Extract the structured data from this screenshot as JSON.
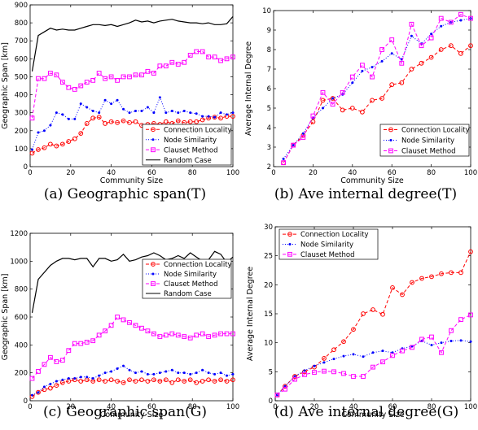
{
  "chart_data": [
    {
      "type": "line",
      "caption": "(a) Geographic span(T)",
      "xlabel": "Community Size",
      "ylabel": "Geographic Span [km]",
      "xlim": [
        0,
        100
      ],
      "ylim": [
        0,
        900
      ],
      "xticks": [
        0,
        20,
        40,
        60,
        80,
        100
      ],
      "yticks": [
        0,
        100,
        200,
        300,
        400,
        500,
        600,
        700,
        800,
        900
      ],
      "legend_position": "bottom-right",
      "series": [
        {
          "name": "Connection Locality",
          "color": "#ff0000",
          "style": "dashed",
          "marker": "circle",
          "x": [
            1,
            4,
            7,
            10,
            13,
            16,
            19,
            22,
            25,
            28,
            31,
            34,
            37,
            40,
            43,
            46,
            49,
            52,
            55,
            58,
            61,
            64,
            67,
            70,
            73,
            76,
            79,
            82,
            85,
            88,
            91,
            94,
            97,
            100
          ],
          "y": [
            75,
            95,
            105,
            125,
            115,
            125,
            140,
            155,
            185,
            240,
            270,
            275,
            240,
            250,
            245,
            255,
            245,
            250,
            230,
            235,
            240,
            235,
            250,
            240,
            255,
            245,
            250,
            250,
            260,
            270,
            275,
            270,
            280,
            280
          ]
        },
        {
          "name": "Node Similarity",
          "color": "#0000ff",
          "style": "dotted",
          "marker": "dot",
          "x": [
            1,
            4,
            7,
            10,
            13,
            16,
            19,
            22,
            25,
            28,
            31,
            34,
            37,
            40,
            43,
            46,
            49,
            52,
            55,
            58,
            61,
            64,
            67,
            70,
            73,
            76,
            79,
            82,
            85,
            88,
            91,
            94,
            97,
            100
          ],
          "y": [
            95,
            190,
            200,
            230,
            300,
            290,
            265,
            265,
            350,
            330,
            310,
            300,
            370,
            350,
            370,
            320,
            300,
            310,
            310,
            330,
            300,
            385,
            300,
            310,
            300,
            310,
            300,
            295,
            280,
            280,
            275,
            300,
            290,
            300
          ]
        },
        {
          "name": "Clauset Method",
          "color": "#ff00ff",
          "style": "dashed",
          "marker": "square",
          "x": [
            1,
            4,
            7,
            10,
            13,
            16,
            19,
            22,
            25,
            28,
            31,
            34,
            37,
            40,
            43,
            46,
            49,
            52,
            55,
            58,
            61,
            64,
            67,
            70,
            73,
            76,
            79,
            82,
            85,
            88,
            91,
            94,
            97,
            100
          ],
          "y": [
            270,
            490,
            490,
            520,
            510,
            470,
            440,
            430,
            450,
            470,
            480,
            520,
            490,
            500,
            480,
            500,
            500,
            510,
            510,
            530,
            520,
            560,
            560,
            580,
            570,
            580,
            620,
            640,
            640,
            610,
            610,
            590,
            600,
            610
          ]
        },
        {
          "name": "Random Case",
          "color": "#000000",
          "style": "solid",
          "marker": "none",
          "x": [
            1,
            4,
            7,
            10,
            13,
            16,
            19,
            22,
            25,
            28,
            31,
            34,
            37,
            40,
            43,
            46,
            49,
            52,
            55,
            58,
            61,
            64,
            67,
            70,
            73,
            76,
            79,
            82,
            85,
            88,
            91,
            94,
            97,
            100
          ],
          "y": [
            530,
            730,
            750,
            770,
            760,
            765,
            760,
            760,
            770,
            780,
            790,
            790,
            785,
            790,
            780,
            790,
            800,
            815,
            805,
            810,
            800,
            810,
            815,
            820,
            810,
            805,
            800,
            800,
            795,
            800,
            790,
            790,
            795,
            835
          ]
        }
      ]
    },
    {
      "type": "line",
      "caption": "(b) Ave internal degree(T)",
      "xlabel": "Community Size",
      "ylabel": "Average Internal Degree",
      "xlim": [
        0,
        100
      ],
      "ylim": [
        2,
        10
      ],
      "xticks": [
        0,
        20,
        40,
        60,
        80,
        100
      ],
      "yticks": [
        2,
        3,
        4,
        5,
        6,
        7,
        8,
        9,
        10
      ],
      "legend_position": "bottom-right",
      "series": [
        {
          "name": "Connection Locality",
          "color": "#ff0000",
          "style": "dashed",
          "marker": "circle",
          "x": [
            5,
            10,
            15,
            20,
            25,
            30,
            35,
            40,
            45,
            50,
            55,
            60,
            65,
            70,
            75,
            80,
            85,
            90,
            95,
            100
          ],
          "y": [
            2.2,
            3.1,
            3.6,
            4.3,
            5.4,
            5.5,
            4.9,
            5.0,
            4.8,
            5.4,
            5.5,
            6.2,
            6.3,
            7.0,
            7.3,
            7.6,
            8.0,
            8.2,
            7.8,
            8.2
          ]
        },
        {
          "name": "Node Similarity",
          "color": "#0000ff",
          "style": "dotted",
          "marker": "dot",
          "x": [
            5,
            10,
            15,
            20,
            25,
            30,
            35,
            40,
            45,
            50,
            55,
            60,
            65,
            70,
            75,
            80,
            85,
            90,
            95,
            100
          ],
          "y": [
            2.4,
            3.1,
            3.7,
            4.5,
            5.0,
            5.5,
            5.7,
            6.3,
            6.9,
            7.1,
            7.4,
            7.8,
            7.5,
            8.7,
            8.3,
            8.8,
            9.2,
            9.4,
            9.5,
            9.6
          ]
        },
        {
          "name": "Clauset Method",
          "color": "#ff00ff",
          "style": "dashed",
          "marker": "square",
          "x": [
            5,
            10,
            15,
            20,
            25,
            30,
            35,
            40,
            45,
            50,
            55,
            60,
            65,
            70,
            75,
            80,
            85,
            90,
            95,
            100
          ],
          "y": [
            2.2,
            3.1,
            3.5,
            4.6,
            5.8,
            5.2,
            5.8,
            6.6,
            7.2,
            6.6,
            8.0,
            8.5,
            7.3,
            9.3,
            8.2,
            8.6,
            9.6,
            9.4,
            9.8,
            9.6
          ]
        }
      ]
    },
    {
      "type": "line",
      "caption": "(c) Geographic span(G)",
      "xlabel": "Community Size",
      "ylabel": "Geographic Span [km]",
      "xlim": [
        0,
        100
      ],
      "ylim": [
        0,
        1200
      ],
      "xticks": [
        0,
        20,
        40,
        60,
        80,
        100
      ],
      "yticks": [
        0,
        200,
        400,
        600,
        800,
        1000,
        1200
      ],
      "legend_position": "top-right",
      "series": [
        {
          "name": "Connection Locality",
          "color": "#ff0000",
          "style": "dashed",
          "marker": "circle",
          "x": [
            1,
            4,
            7,
            10,
            13,
            16,
            19,
            22,
            25,
            28,
            31,
            34,
            37,
            40,
            43,
            46,
            49,
            52,
            55,
            58,
            61,
            64,
            67,
            70,
            73,
            76,
            79,
            82,
            85,
            88,
            91,
            94,
            97,
            100
          ],
          "y": [
            30,
            60,
            80,
            90,
            110,
            130,
            140,
            150,
            140,
            150,
            140,
            150,
            140,
            150,
            140,
            130,
            150,
            140,
            150,
            140,
            150,
            140,
            150,
            130,
            150,
            140,
            150,
            130,
            140,
            150,
            140,
            150,
            140,
            150
          ]
        },
        {
          "name": "Node Similarity",
          "color": "#0000ff",
          "style": "dotted",
          "marker": "dot",
          "x": [
            1,
            4,
            7,
            10,
            13,
            16,
            19,
            22,
            25,
            28,
            31,
            34,
            37,
            40,
            43,
            46,
            49,
            52,
            55,
            58,
            61,
            64,
            67,
            70,
            73,
            76,
            79,
            82,
            85,
            88,
            91,
            94,
            97,
            100
          ],
          "y": [
            40,
            60,
            100,
            120,
            140,
            150,
            160,
            160,
            170,
            170,
            160,
            180,
            200,
            210,
            230,
            250,
            220,
            200,
            210,
            190,
            190,
            200,
            210,
            220,
            200,
            200,
            190,
            200,
            220,
            200,
            190,
            200,
            180,
            190
          ]
        },
        {
          "name": "Clauset Method",
          "color": "#ff00ff",
          "style": "dashed",
          "marker": "square",
          "x": [
            1,
            4,
            7,
            10,
            13,
            16,
            19,
            22,
            25,
            28,
            31,
            34,
            37,
            40,
            43,
            46,
            49,
            52,
            55,
            58,
            61,
            64,
            67,
            70,
            73,
            76,
            79,
            82,
            85,
            88,
            91,
            94,
            97,
            100
          ],
          "y": [
            160,
            210,
            260,
            310,
            280,
            290,
            360,
            410,
            410,
            420,
            430,
            470,
            500,
            540,
            600,
            580,
            560,
            540,
            520,
            500,
            480,
            460,
            470,
            480,
            470,
            460,
            450,
            470,
            480,
            460,
            470,
            480,
            480,
            480
          ]
        },
        {
          "name": "Random Case",
          "color": "#000000",
          "style": "solid",
          "marker": "none",
          "x": [
            1,
            4,
            7,
            10,
            13,
            16,
            19,
            22,
            25,
            28,
            31,
            34,
            37,
            40,
            43,
            46,
            49,
            52,
            55,
            58,
            61,
            64,
            67,
            70,
            73,
            76,
            79,
            82,
            85,
            88,
            91,
            94,
            97,
            100
          ],
          "y": [
            630,
            870,
            920,
            970,
            1000,
            1020,
            1020,
            1010,
            1020,
            1020,
            960,
            1020,
            1020,
            1000,
            1010,
            1050,
            1000,
            1010,
            1030,
            1040,
            1060,
            1040,
            1010,
            1020,
            1040,
            1020,
            1060,
            1030,
            1000,
            1010,
            1070,
            1050,
            990,
            1030
          ]
        }
      ]
    },
    {
      "type": "line",
      "caption": "(d) Ave internal degree(G)",
      "xlabel": "Community Size",
      "ylabel": "Average Internal Degree",
      "xlim": [
        0,
        100
      ],
      "ylim": [
        0,
        30
      ],
      "xticks": [
        0,
        20,
        40,
        60,
        80,
        100
      ],
      "yticks": [
        0,
        5,
        10,
        15,
        20,
        25,
        30
      ],
      "legend_position": "top-left",
      "series": [
        {
          "name": "Connection Locality",
          "color": "#ff0000",
          "style": "dashed",
          "marker": "circle",
          "x": [
            1,
            5,
            10,
            15,
            20,
            25,
            30,
            35,
            40,
            45,
            50,
            55,
            60,
            65,
            70,
            75,
            80,
            85,
            90,
            95,
            100
          ],
          "y": [
            1,
            2.5,
            4.2,
            5.0,
            5.8,
            7.3,
            8.8,
            10.2,
            12.3,
            15.0,
            15.7,
            14.9,
            19.5,
            18.3,
            20.4,
            21.1,
            21.4,
            21.9,
            22.1,
            22.1,
            25.7
          ]
        },
        {
          "name": "Node Similarity",
          "color": "#0000ff",
          "style": "dotted",
          "marker": "dot",
          "x": [
            1,
            5,
            10,
            15,
            20,
            25,
            30,
            35,
            40,
            45,
            50,
            55,
            60,
            65,
            70,
            75,
            80,
            85,
            90,
            95,
            100
          ],
          "y": [
            1,
            2.5,
            4.2,
            5.2,
            6.0,
            6.6,
            7.2,
            7.7,
            8.0,
            7.6,
            8.3,
            8.6,
            8.3,
            9.0,
            9.4,
            10.3,
            9.6,
            10.0,
            10.3,
            10.4,
            10.2
          ]
        },
        {
          "name": "Clauset Method",
          "color": "#ff00ff",
          "style": "dashed",
          "marker": "square",
          "x": [
            1,
            5,
            10,
            15,
            20,
            25,
            30,
            35,
            40,
            45,
            50,
            55,
            60,
            65,
            70,
            75,
            80,
            85,
            90,
            95,
            100
          ],
          "y": [
            1,
            2.0,
            3.7,
            4.5,
            4.9,
            5.1,
            5.0,
            4.7,
            4.2,
            4.2,
            5.8,
            6.7,
            7.8,
            8.6,
            9.2,
            10.6,
            11.0,
            8.3,
            12.1,
            14.0,
            14.8
          ]
        }
      ]
    }
  ]
}
